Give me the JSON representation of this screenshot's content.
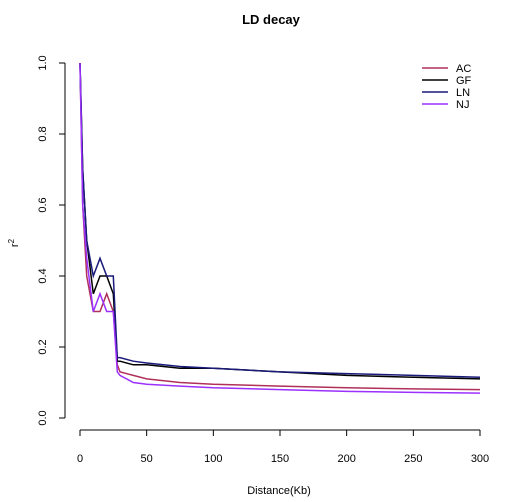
{
  "chart_data": {
    "type": "line",
    "title": "LD decay",
    "xlabel": "Distance(Kb)",
    "ylabel": "r",
    "ylabel_superscript": "2",
    "xlim": [
      0,
      300
    ],
    "ylim": [
      0,
      1
    ],
    "xticks": [
      0,
      50,
      100,
      150,
      200,
      250,
      300
    ],
    "yticks": [
      "0.0",
      "0.2",
      "0.4",
      "0.6",
      "0.8",
      "1.0"
    ],
    "legend_position": "top-right",
    "grid": false,
    "series": [
      {
        "name": "AC",
        "color": "#b0305a",
        "x": [
          0,
          2,
          5,
          10,
          15,
          20,
          25,
          28,
          30,
          40,
          50,
          75,
          100,
          150,
          200,
          250,
          300
        ],
        "y": [
          1.0,
          0.6,
          0.4,
          0.3,
          0.3,
          0.35,
          0.3,
          0.15,
          0.13,
          0.12,
          0.11,
          0.1,
          0.095,
          0.09,
          0.085,
          0.082,
          0.08
        ]
      },
      {
        "name": "GF",
        "color": "#000000",
        "x": [
          0,
          2,
          5,
          10,
          15,
          20,
          25,
          28,
          30,
          40,
          50,
          75,
          100,
          150,
          200,
          250,
          300
        ],
        "y": [
          1.0,
          0.7,
          0.5,
          0.35,
          0.4,
          0.4,
          0.35,
          0.16,
          0.16,
          0.15,
          0.15,
          0.14,
          0.14,
          0.13,
          0.12,
          0.115,
          0.11
        ]
      },
      {
        "name": "LN",
        "color": "#1a1a7a",
        "x": [
          0,
          2,
          5,
          10,
          15,
          20,
          25,
          28,
          30,
          40,
          50,
          75,
          100,
          150,
          200,
          250,
          300
        ],
        "y": [
          1.0,
          0.7,
          0.5,
          0.4,
          0.45,
          0.4,
          0.4,
          0.17,
          0.17,
          0.16,
          0.155,
          0.145,
          0.14,
          0.13,
          0.125,
          0.12,
          0.115
        ]
      },
      {
        "name": "NJ",
        "color": "#9b30ff",
        "x": [
          0,
          2,
          5,
          10,
          15,
          20,
          25,
          28,
          30,
          40,
          50,
          75,
          100,
          150,
          200,
          250,
          300
        ],
        "y": [
          1.0,
          0.6,
          0.45,
          0.3,
          0.35,
          0.3,
          0.3,
          0.13,
          0.12,
          0.1,
          0.095,
          0.09,
          0.085,
          0.08,
          0.075,
          0.072,
          0.07
        ]
      }
    ]
  }
}
